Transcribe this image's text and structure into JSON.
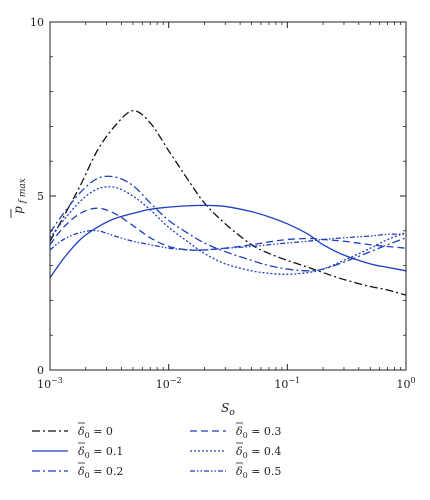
{
  "chart_data": {
    "type": "line",
    "xlabel": "S",
    "xlabel_sub": "o",
    "ylabel": "p",
    "ylabel_sub": "f max",
    "xscale": "log",
    "xlim": [
      0.001,
      1
    ],
    "ylim": [
      0,
      10
    ],
    "xticks": [
      0.001,
      0.01,
      0.1,
      1
    ],
    "xtick_labels": [
      {
        "base": "10",
        "exp": "−3"
      },
      {
        "base": "10",
        "exp": "−2"
      },
      {
        "base": "10",
        "exp": "−1"
      },
      {
        "base": "10",
        "exp": "0"
      }
    ],
    "yticks": [
      0,
      5,
      10
    ],
    "ytick_labels": [
      "0",
      "5",
      "10"
    ],
    "grid": false,
    "legend_position": "below",
    "series": [
      {
        "name": "δ̄₀ = 0",
        "label_symbol": "δ",
        "label_sub": "0",
        "label_value": "= 0",
        "color": "#111111",
        "dash": "8,3,2,3",
        "x": [
          0.001,
          0.0013,
          0.0018,
          0.0025,
          0.0035,
          0.005,
          0.007,
          0.01,
          0.015,
          0.02,
          0.03,
          0.05,
          0.07,
          0.1,
          0.15,
          0.2,
          0.3,
          0.5,
          0.7,
          1
        ],
        "y": [
          3.7,
          4.4,
          5.3,
          6.3,
          7.0,
          7.45,
          7.1,
          6.3,
          5.4,
          4.8,
          4.2,
          3.6,
          3.35,
          3.15,
          2.95,
          2.8,
          2.6,
          2.4,
          2.3,
          2.15
        ]
      },
      {
        "name": "δ̄₀ = 0.1",
        "label_symbol": "δ",
        "label_sub": "0",
        "label_value": "= 0.1",
        "color": "#1f3fbf",
        "dash": "",
        "x": [
          0.001,
          0.0013,
          0.0018,
          0.0025,
          0.0035,
          0.005,
          0.007,
          0.01,
          0.015,
          0.02,
          0.03,
          0.05,
          0.07,
          0.1,
          0.15,
          0.2,
          0.3,
          0.5,
          0.7,
          1
        ],
        "y": [
          2.65,
          3.2,
          3.75,
          4.1,
          4.35,
          4.5,
          4.62,
          4.68,
          4.72,
          4.73,
          4.7,
          4.55,
          4.4,
          4.2,
          3.9,
          3.6,
          3.3,
          3.05,
          2.95,
          2.85
        ]
      },
      {
        "name": "δ̄₀ = 0.2",
        "label_symbol": "δ",
        "label_sub": "0",
        "label_value": "= 0.2",
        "color": "#1f3fbf",
        "dash": "8,3,2,3",
        "x": [
          0.001,
          0.0013,
          0.0018,
          0.0025,
          0.0035,
          0.005,
          0.007,
          0.01,
          0.015,
          0.02,
          0.03,
          0.05,
          0.07,
          0.1,
          0.15,
          0.2,
          0.3,
          0.5,
          0.7,
          1
        ],
        "y": [
          3.95,
          4.5,
          5.1,
          5.5,
          5.55,
          5.3,
          4.8,
          4.3,
          3.9,
          3.65,
          3.4,
          3.15,
          3.0,
          2.9,
          2.85,
          2.9,
          3.1,
          3.4,
          3.6,
          3.8
        ]
      },
      {
        "name": "δ̄₀ = 0.3",
        "label_symbol": "δ",
        "label_sub": "0",
        "label_value": "= 0.3",
        "color": "#1f3fbf",
        "dash": "7,4",
        "x": [
          0.001,
          0.0013,
          0.0018,
          0.0025,
          0.0035,
          0.005,
          0.007,
          0.01,
          0.015,
          0.02,
          0.03,
          0.05,
          0.07,
          0.1,
          0.15,
          0.2,
          0.3,
          0.5,
          0.7,
          1
        ],
        "y": [
          3.6,
          4.1,
          4.5,
          4.65,
          4.5,
          4.15,
          3.8,
          3.55,
          3.45,
          3.45,
          3.5,
          3.6,
          3.68,
          3.75,
          3.78,
          3.75,
          3.7,
          3.6,
          3.55,
          3.5
        ]
      },
      {
        "name": "δ̄₀ = 0.4",
        "label_symbol": "δ",
        "label_sub": "0",
        "label_value": "= 0.4",
        "color": "#1f3fbf",
        "dash": "2,2",
        "x": [
          0.001,
          0.0013,
          0.0018,
          0.0025,
          0.0035,
          0.005,
          0.007,
          0.01,
          0.015,
          0.02,
          0.03,
          0.05,
          0.07,
          0.1,
          0.15,
          0.2,
          0.3,
          0.5,
          0.7,
          1
        ],
        "y": [
          3.8,
          4.3,
          4.85,
          5.2,
          5.25,
          5.0,
          4.6,
          4.1,
          3.65,
          3.35,
          3.05,
          2.85,
          2.78,
          2.75,
          2.8,
          2.9,
          3.15,
          3.5,
          3.75,
          3.95
        ]
      },
      {
        "name": "δ̄₀ = 0.5",
        "label_symbol": "δ",
        "label_sub": "0",
        "label_value": "= 0.5",
        "color": "#1f3fbf",
        "dash": "5,2,1.5,2,1.5,2",
        "x": [
          0.001,
          0.0013,
          0.0018,
          0.0025,
          0.0035,
          0.005,
          0.007,
          0.01,
          0.015,
          0.02,
          0.03,
          0.05,
          0.07,
          0.1,
          0.15,
          0.2,
          0.3,
          0.5,
          0.7,
          1
        ],
        "y": [
          3.45,
          3.75,
          3.95,
          4.0,
          3.85,
          3.7,
          3.6,
          3.5,
          3.45,
          3.45,
          3.5,
          3.55,
          3.6,
          3.65,
          3.7,
          3.75,
          3.8,
          3.85,
          3.9,
          3.9
        ]
      }
    ]
  }
}
